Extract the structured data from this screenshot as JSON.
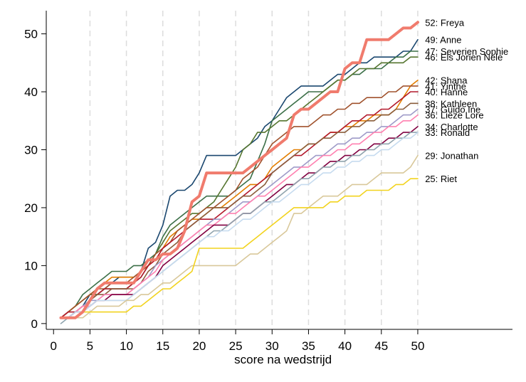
{
  "chart_data": {
    "type": "line",
    "title": "",
    "xlabel": "score na wedstrijd",
    "ylabel": "",
    "xlim": [
      -1,
      63
    ],
    "ylim": [
      -1,
      54
    ],
    "x_ticks": [
      "0",
      "5",
      "10",
      "15",
      "20",
      "25",
      "30",
      "35",
      "40",
      "45",
      "50"
    ],
    "y_ticks": [
      "0",
      "10",
      "20",
      "30",
      "40",
      "50"
    ],
    "grid": "vertical dashed every 5",
    "series": [
      {
        "name": "52: Freya",
        "label": "52: Freya",
        "color": "#f07b6d",
        "highlight": true,
        "y": [
          1,
          1,
          1,
          2,
          4,
          6,
          7,
          7,
          7,
          7,
          7,
          9,
          11,
          11,
          12,
          12,
          13,
          16,
          21,
          22,
          26,
          26,
          26,
          26,
          26,
          26,
          27,
          28,
          29,
          30,
          31,
          32,
          36,
          37,
          37,
          38,
          39,
          40,
          40,
          44,
          45,
          45,
          49,
          49,
          49,
          49,
          50,
          51,
          51,
          52
        ]
      },
      {
        "name": "49: Anne",
        "label": "49: Anne",
        "color": "#1a476f",
        "y": [
          1,
          1,
          2,
          3,
          5,
          5,
          6,
          7,
          8,
          8,
          8,
          9,
          13,
          14,
          17,
          22,
          23,
          23,
          24,
          26,
          29,
          29,
          29,
          29,
          29,
          30,
          31,
          32,
          34,
          35,
          37,
          39,
          40,
          41,
          41,
          41,
          41,
          42,
          43,
          43,
          44,
          45,
          45,
          46,
          46,
          46,
          46,
          47,
          47,
          49
        ]
      },
      {
        "name": "47: Severien Sophie",
        "label": "47: Severien Sophie",
        "color": "#3b6f47",
        "y": [
          1,
          2,
          3,
          5,
          6,
          7,
          8,
          9,
          9,
          9,
          10,
          10,
          11,
          12,
          15,
          17,
          18,
          19,
          20,
          21,
          22,
          22,
          22,
          22,
          23,
          24,
          25,
          28,
          31,
          35,
          36,
          37,
          38,
          39,
          40,
          40,
          40,
          41,
          42,
          42,
          43,
          43,
          44,
          44,
          44,
          45,
          46,
          46,
          47,
          47
        ]
      },
      {
        "name": "46: Els Jorien Nele",
        "label": "46: Els Jorien Nele",
        "color": "#55752f",
        "y": [
          1,
          2,
          3,
          4,
          5,
          5,
          6,
          6,
          6,
          6,
          7,
          8,
          10,
          12,
          14,
          16,
          17,
          18,
          19,
          19,
          20,
          21,
          23,
          25,
          27,
          30,
          31,
          33,
          33,
          34,
          35,
          35,
          36,
          37,
          38,
          39,
          40,
          41,
          42,
          42,
          43,
          44,
          44,
          44,
          45,
          45,
          45,
          45,
          46,
          46
        ]
      },
      {
        "name": "42: Shana",
        "label": "42: Shana",
        "color": "#e37e00",
        "y": [
          1,
          2,
          3,
          4,
          5,
          6,
          7,
          8,
          8,
          8,
          8,
          9,
          10,
          11,
          13,
          15,
          16,
          17,
          18,
          18,
          19,
          20,
          20,
          21,
          22,
          23,
          24,
          24,
          25,
          27,
          28,
          29,
          30,
          30,
          31,
          31,
          32,
          33,
          33,
          34,
          34,
          35,
          35,
          36,
          36,
          36,
          37,
          39,
          41,
          42
        ]
      },
      {
        "name": "41: Yinthe",
        "label": "41: Yinthe",
        "color": "#a0522d",
        "y": [
          1,
          2,
          3,
          4,
          5,
          6,
          6,
          7,
          7,
          7,
          8,
          9,
          10,
          12,
          13,
          14,
          16,
          17,
          18,
          19,
          20,
          20,
          21,
          22,
          23,
          25,
          26,
          27,
          29,
          31,
          32,
          33,
          34,
          34,
          34,
          35,
          36,
          36,
          37,
          37,
          38,
          38,
          39,
          39,
          39,
          40,
          40,
          41,
          41,
          41
        ]
      },
      {
        "name": "40: Hanne",
        "label": "40: Hanne",
        "color": "#b2182b",
        "y": [
          1,
          2,
          2,
          3,
          4,
          5,
          6,
          6,
          6,
          6,
          7,
          8,
          10,
          11,
          13,
          14,
          15,
          16,
          17,
          18,
          18,
          18,
          19,
          20,
          21,
          22,
          23,
          24,
          25,
          26,
          27,
          28,
          29,
          29,
          30,
          31,
          32,
          33,
          33,
          34,
          35,
          35,
          36,
          36,
          37,
          37,
          38,
          39,
          40,
          40
        ]
      },
      {
        "name": "38: Kathleen",
        "label": "38: Kathleen",
        "color": "#8b5e3c",
        "y": [
          1,
          1,
          2,
          3,
          4,
          5,
          5,
          6,
          6,
          6,
          6,
          7,
          9,
          10,
          12,
          13,
          14,
          16,
          17,
          18,
          19,
          20,
          20,
          20,
          21,
          22,
          22,
          23,
          24,
          26,
          27,
          28,
          29,
          30,
          31,
          31,
          32,
          32,
          33,
          33,
          34,
          34,
          35,
          35,
          36,
          36,
          37,
          37,
          38,
          38
        ]
      },
      {
        "name": "37: Guido Ine",
        "label": "37: Guido Ine",
        "color": "#9e9ac8",
        "y": [
          1,
          1,
          2,
          3,
          4,
          4,
          5,
          5,
          5,
          5,
          6,
          7,
          8,
          10,
          11,
          12,
          13,
          14,
          15,
          16,
          17,
          18,
          18,
          19,
          20,
          21,
          21,
          22,
          23,
          24,
          25,
          26,
          27,
          27,
          28,
          29,
          29,
          30,
          31,
          31,
          32,
          32,
          33,
          33,
          34,
          34,
          35,
          36,
          36,
          37
        ]
      },
      {
        "name": "36: Lieze Lore",
        "label": "36: Lieze Lore",
        "color": "#ff80b0",
        "y": [
          1,
          1,
          2,
          3,
          3,
          4,
          5,
          5,
          5,
          5,
          6,
          7,
          8,
          9,
          11,
          12,
          13,
          14,
          15,
          16,
          17,
          17,
          18,
          19,
          19,
          20,
          21,
          22,
          22,
          23,
          24,
          25,
          26,
          27,
          27,
          28,
          29,
          29,
          30,
          30,
          31,
          31,
          32,
          33,
          33,
          34,
          34,
          35,
          35,
          36
        ]
      },
      {
        "name": "34: Charlotte",
        "label": "34: Charlotte",
        "color": "#800040",
        "y": [
          1,
          1,
          2,
          2,
          3,
          4,
          4,
          5,
          5,
          5,
          5,
          6,
          7,
          8,
          10,
          11,
          12,
          13,
          14,
          15,
          16,
          17,
          17,
          17,
          18,
          19,
          19,
          20,
          21,
          22,
          23,
          24,
          24,
          25,
          26,
          26,
          27,
          28,
          28,
          29,
          29,
          30,
          30,
          31,
          31,
          32,
          32,
          33,
          33,
          34
        ]
      },
      {
        "name": "33: Ronald",
        "label": "33: Ronald",
        "color": "#90a4ae",
        "y": [
          0,
          1,
          1,
          2,
          3,
          4,
          4,
          4,
          4,
          4,
          5,
          6,
          7,
          8,
          9,
          10,
          11,
          12,
          13,
          14,
          15,
          16,
          16,
          17,
          18,
          19,
          19,
          20,
          21,
          21,
          22,
          23,
          24,
          25,
          25,
          26,
          27,
          27,
          28,
          28,
          29,
          29,
          30,
          30,
          31,
          31,
          32,
          32,
          33,
          33
        ]
      },
      {
        "name": "",
        "label": "",
        "color": "#c6dbef",
        "y": [
          1,
          1,
          2,
          2,
          3,
          4,
          4,
          4,
          4,
          4,
          5,
          6,
          7,
          8,
          9,
          10,
          11,
          12,
          13,
          14,
          15,
          15,
          16,
          16,
          17,
          18,
          18,
          19,
          20,
          21,
          21,
          22,
          23,
          24,
          24,
          25,
          26,
          26,
          27,
          27,
          28,
          28,
          29,
          29,
          30,
          30,
          31,
          32,
          32,
          33
        ]
      },
      {
        "name": "29: Jonathan",
        "label": "29: Jonathan",
        "color": "#d9c89a",
        "y": [
          1,
          1,
          1,
          1,
          2,
          3,
          3,
          3,
          3,
          4,
          4,
          5,
          5,
          6,
          7,
          7,
          8,
          9,
          10,
          10,
          10,
          10,
          10,
          10,
          10,
          11,
          12,
          12,
          13,
          14,
          15,
          16,
          19,
          19,
          20,
          21,
          22,
          22,
          22,
          23,
          24,
          24,
          24,
          25,
          26,
          26,
          26,
          26,
          27,
          29
        ]
      },
      {
        "name": "25: Riet",
        "label": "25: Riet",
        "color": "#f2d31e",
        "y": [
          1,
          1,
          1,
          2,
          2,
          2,
          2,
          2,
          2,
          2,
          3,
          3,
          4,
          5,
          6,
          6,
          7,
          8,
          9,
          13,
          13,
          13,
          13,
          13,
          13,
          13,
          14,
          15,
          16,
          17,
          18,
          19,
          20,
          20,
          20,
          20,
          20,
          21,
          21,
          22,
          22,
          22,
          23,
          23,
          23,
          23,
          24,
          24,
          25,
          25
        ]
      }
    ]
  }
}
